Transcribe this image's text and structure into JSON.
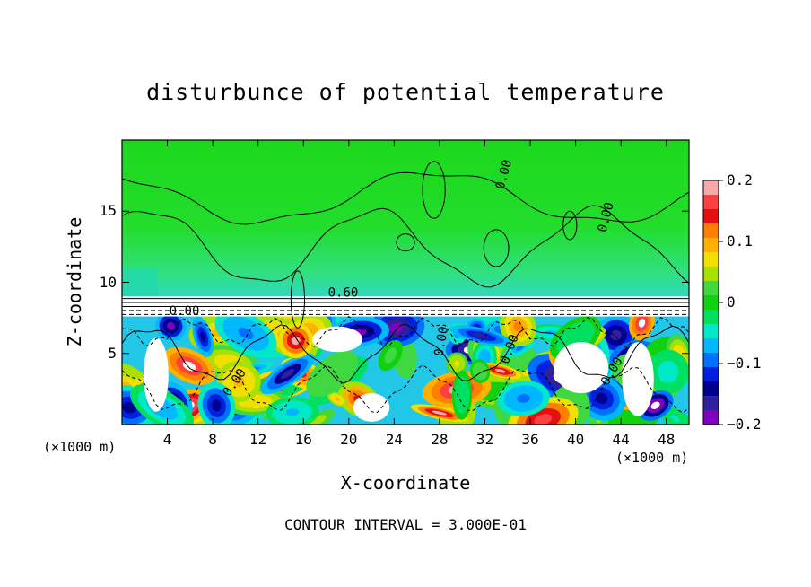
{
  "chart_data": {
    "type": "heatmap",
    "title": "disturbunce of potential temperature",
    "xlabel": "X-coordinate",
    "ylabel": "Z-coordinate",
    "x_unit": "(×1000 m)",
    "xlim": [
      0,
      50
    ],
    "ylim": [
      0,
      20
    ],
    "x_ticks": [
      4,
      8,
      12,
      16,
      20,
      24,
      28,
      32,
      36,
      40,
      44,
      48
    ],
    "y_ticks": [
      5,
      10,
      15
    ],
    "colorbar": {
      "range": [
        -0.2,
        0.2
      ],
      "ticks": [
        "0.2",
        "0.1",
        "0",
        "−0.1",
        "−0.2"
      ],
      "colors": [
        "#f7a8a8",
        "#ff4040",
        "#e41010",
        "#ff7f00",
        "#ffb000",
        "#f0e000",
        "#a8e000",
        "#40d840",
        "#10d010",
        "#00e060",
        "#00e8c8",
        "#00b8ff",
        "#0070ff",
        "#0020e0",
        "#000090",
        "#3020a0",
        "#8000c0"
      ]
    },
    "contour_labels": [
      "0.60",
      "0.00",
      "0.00",
      "0.00",
      "0.00",
      "0.00",
      "0.00",
      "0.00"
    ],
    "footer": "CONTOUR INTERVAL = 3.000E-01"
  }
}
